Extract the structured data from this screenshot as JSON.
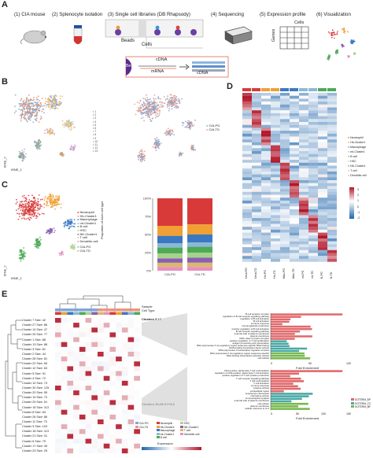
{
  "panelA": {
    "letter": "A",
    "steps": [
      "(1) CIA mouse",
      "(2) Splenocyte isolation",
      "(3) Single cell libraries (DB Rhapsody)",
      "(4) Sequencing",
      "(5) Expression profile",
      "(6) Visualization"
    ],
    "diagram_labels": {
      "beads": "Beads",
      "cells": "Cells",
      "bead": "Bead",
      "cdna_top": "cDNA",
      "mrna": "mRNA",
      "cdna_right": "cDNA",
      "cells_grid": "Cells",
      "genes": "Genes"
    }
  },
  "panelB": {
    "letter": "B",
    "cluster_numbers": [
      "1",
      "2",
      "3",
      "4",
      "5",
      "6",
      "7",
      "8",
      "9",
      "10",
      "11",
      "12",
      "13"
    ],
    "sample_legend": [
      "CIA-PG",
      "CIA-TD"
    ],
    "axis_x": "tSNE_1",
    "axis_y": "tSNE_2"
  },
  "panelC": {
    "letter": "C",
    "cell_types": [
      "Neutrophil",
      "Hb-Cluster1",
      "Macrophage",
      "mt-Cluster1",
      "B cell",
      "HSC",
      "NK-Cluster1",
      "T cell",
      "Dendritic cell"
    ],
    "cell_type_colors": [
      "#d83a3a",
      "#f0a035",
      "#3b78c2",
      "#8cb8d8",
      "#4daa57",
      "#a8d28c",
      "#8a5fb0",
      "#d9b86e",
      "#e88fbf"
    ],
    "sample_legend": [
      "CIA-PG",
      "CIA-TD"
    ],
    "axis_x": "tSNE_1",
    "axis_y": "tSNE_2",
    "bar_ylabel": "Proportion of each cell type",
    "bar_ticks": [
      "100%",
      "75%",
      "50%",
      "25%",
      "0%"
    ],
    "bar_categories": [
      "CIA-PG",
      "CIA-TD"
    ]
  },
  "panelD": {
    "letter": "D",
    "legend": [
      "Neutrophil",
      "Hb-Cluster1",
      "Macrophage",
      "mt-Cluster1",
      "B cell",
      "HSC",
      "NK-Cluster1",
      "T cell",
      "Dendritic cell"
    ],
    "legend_colors": [
      "#d83a3a",
      "#f0a035",
      "#3b78c2",
      "#8cb8d8",
      "#4daa57",
      "#a8d28c",
      "#8a5fb0",
      "#d9b86e",
      "#e88fbf"
    ],
    "scale_ticks": [
      "3",
      "2",
      "1",
      "0",
      "-1",
      "-2"
    ],
    "columns": [
      "Neut-PG",
      "Neut-TD",
      "Hb-PG",
      "Hb-TD",
      "Mac-PG",
      "Mac-TD",
      "mt-PG",
      "mt-TD",
      "B-PG",
      "B-TD"
    ]
  },
  "panelE": {
    "letter": "E",
    "row_labels": [
      "Cluster 7 Size: 42",
      "Cluster 27 Size: 86",
      "Cluster 14 Size: 47",
      "Cluster 25 Size: 77",
      "Cluster 1 Size: 88",
      "Cluster 13 Size: 88",
      "Cluster 3 Size: 81",
      "Cluster 2 Size: 44",
      "Cluster 28 Size: 81",
      "Cluster 22 Size: 65",
      "Cluster 12 Size: 63",
      "Cluster 5 Size: 91",
      "Cluster 4 Size: 72",
      "Cluster 10 Size: 73",
      "Cluster 30 Size: 129",
      "Cluster 20 Size: 55",
      "Cluster 19 Size: 72",
      "Cluster 29 Size: 51",
      "Cluster 15 Size: 113",
      "Cluster 8 Size: 63",
      "Cluster 26 Size: 86",
      "Cluster 11 Size: 73",
      "Cluster 9 Size: 103",
      "Cluster 16 Size: 113",
      "Cluster 21 Size: 31",
      "Cluster 6 Size: 79",
      "Cluster 17 Size: 49",
      "Cluster 23 Size: 25"
    ],
    "top_legend": [
      "Sample",
      "Cell Type"
    ],
    "cluster_labels": [
      "Clusters 9,13",
      "Clusters 20,28+17+8,6"
    ],
    "go_top": [
      "B cell receptor complex",
      "regulation of B cell receptor signaling pathway",
      "regulation of B cell activation",
      "B cell activation",
      "immune response",
      "immunoglobulin production",
      "positive regulation of B cell activation",
      "B cell receptor signaling pathway",
      "external side of plasma membrane",
      "plasma membrane",
      "MHC class II protein complex",
      "positive regulation of T cell proliferation",
      "antigen processing and presentation",
      "RNA polymerase II cis-regulatory region sequence-specific DNA binding",
      "DNA-binding transcription factor activity",
      "RNA polymerase II transcription regulator complex",
      "RNA polymerase II cis-regulatory region sequence-specific",
      "DNA-binding transcription activator activity",
      "cell surface"
    ],
    "go_bottom": [
      "CD4-positive, alpha-beta T cell costimulation",
      "regulation of CD4-positive, alpha-beta T cell activation",
      "positive regulation of T cell cytokine production",
      "T cell receptor signaling pathway",
      "T cell costimulation",
      "T cell activation",
      "immune response",
      "cytokine activity",
      "extracellular space",
      "lymphocyte chemotaxis",
      "chemokine activity",
      "immunological synapse",
      "external side of plasma membrane",
      "cell surface",
      "plasma membrane",
      "cellular response to IL-2"
    ],
    "top_xlabel": "Fold Enrichment",
    "top_xticks": [
      "0",
      "50",
      "100"
    ],
    "bottom_xlabel": "Fold Enrichment",
    "bottom_xticks": [
      "0",
      "50",
      "100",
      "150"
    ],
    "bar_legend": [
      "GOTERM_BP",
      "GOTERM_CC",
      "GOTERM_MF"
    ],
    "bar_legend_colors": [
      "#e0696b",
      "#4aa9a4",
      "#79b84f"
    ],
    "expression_label": "Expression",
    "sample_entries": [
      "CIA-PG",
      "CIA-TD"
    ],
    "celltype_entries": [
      "Neutrophil",
      "Hb-Cluster1",
      "Macrophage",
      "mt-Cluster1",
      "B cell",
      "HSC",
      "NK-Cluster1",
      "T cell",
      "Dendritic cell"
    ]
  }
}
